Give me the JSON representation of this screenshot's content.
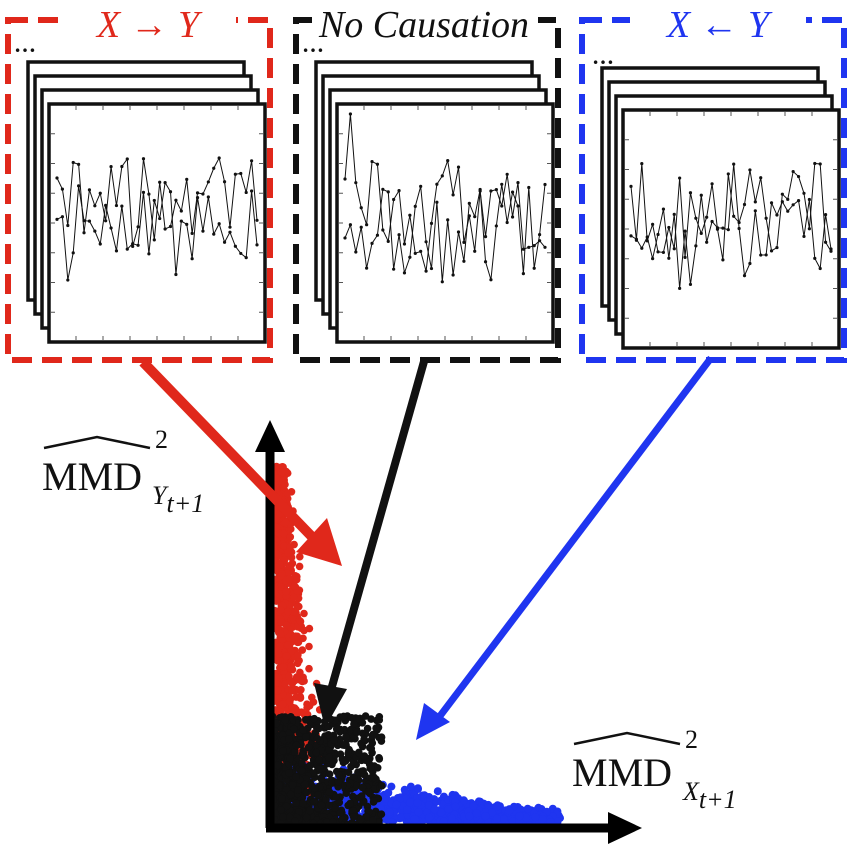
{
  "colors": {
    "red": "#e0281b",
    "black": "#111111",
    "blue": "#1f35f0"
  },
  "panels": [
    {
      "id": "x-to-y",
      "title_var1": "X",
      "title_arrow": "→",
      "title_var2": "Y",
      "color": "#e0281b",
      "ellipsis": "…"
    },
    {
      "id": "no-causation",
      "title": "No Causation",
      "color": "#111111",
      "ellipsis": "…"
    },
    {
      "id": "y-to-x",
      "title_var1": "X",
      "title_arrow": "←",
      "title_var2": "Y",
      "color": "#1f35f0",
      "ellipsis": "…"
    }
  ],
  "axes": {
    "y_label": "MMD",
    "y_label_sup": "2",
    "y_label_sub_var": "Y",
    "y_label_sub_index": "t+1",
    "x_label": "MMD",
    "x_label_sup": "2",
    "x_label_sub_var": "X",
    "x_label_sub_index": "t+1"
  }
}
